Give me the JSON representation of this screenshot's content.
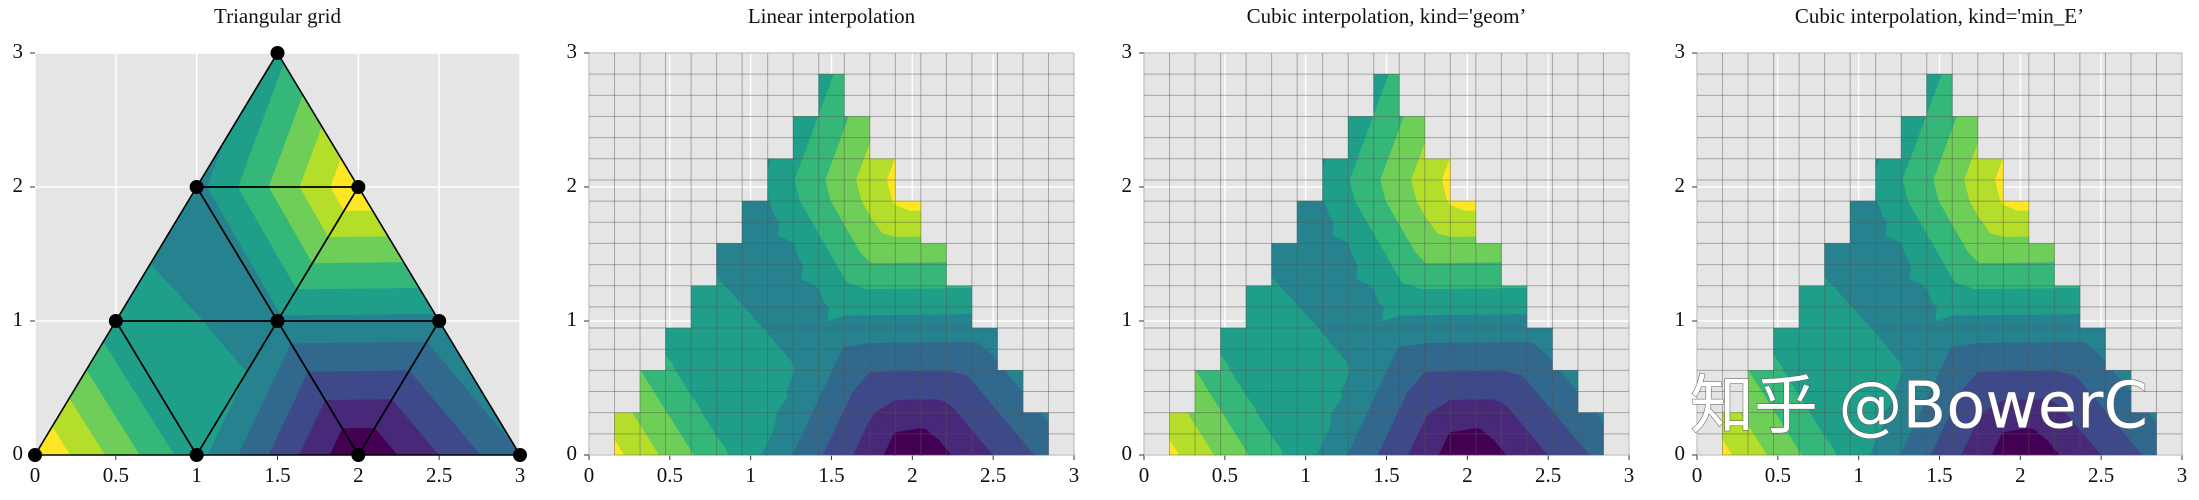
{
  "chart_data": [
    {
      "type": "tricontour",
      "title": "Triangular grid",
      "x": [
        0,
        1,
        2,
        3,
        0.5,
        1.5,
        2.5,
        1,
        2,
        1.5
      ],
      "y": [
        0,
        0,
        0,
        0,
        1,
        1,
        1,
        2,
        2,
        3
      ],
      "z": [
        1,
        0.0707,
        -0.99,
        -0.2108,
        0.0518,
        -0.0444,
        -0.058,
        -0.07,
        0.9801,
        0.1324
      ],
      "triangles": [
        [
          0,
          1,
          4
        ],
        [
          1,
          2,
          5
        ],
        [
          2,
          3,
          6
        ],
        [
          1,
          5,
          4
        ],
        [
          2,
          6,
          5
        ],
        [
          4,
          5,
          7
        ],
        [
          5,
          6,
          8
        ],
        [
          5,
          8,
          7
        ],
        [
          7,
          8,
          9
        ]
      ],
      "levels": [
        -1,
        -0.8,
        -0.6,
        -0.4,
        -0.2,
        0,
        0.2,
        0.4,
        0.6,
        0.8,
        1
      ],
      "colors": [
        "#440154",
        "#482878",
        "#3e4989",
        "#31688e",
        "#26828e",
        "#1f9e89",
        "#35b779",
        "#6ece58",
        "#b5de2b",
        "#fde725"
      ],
      "xlim": [
        0,
        3
      ],
      "ylim": [
        0,
        3
      ],
      "xticks": [
        0,
        0.5,
        1,
        1.5,
        2,
        2.5,
        3
      ],
      "yticks": [
        0,
        1,
        2,
        3
      ],
      "grid": true
    },
    {
      "type": "grid_contour",
      "title": "Linear interpolation",
      "grid_n": 20,
      "x": [
        0,
        1,
        2,
        3,
        0.5,
        1.5,
        2.5,
        1,
        2,
        1.5
      ],
      "y": [
        0,
        0,
        0,
        0,
        1,
        1,
        1,
        2,
        2,
        3
      ],
      "z": [
        1,
        0.0707,
        -0.99,
        -0.2108,
        0.0518,
        -0.0444,
        -0.058,
        -0.07,
        0.9801,
        0.1324
      ],
      "triangles": [
        [
          0,
          1,
          4
        ],
        [
          1,
          2,
          5
        ],
        [
          2,
          3,
          6
        ],
        [
          1,
          5,
          4
        ],
        [
          2,
          6,
          5
        ],
        [
          4,
          5,
          7
        ],
        [
          5,
          6,
          8
        ],
        [
          5,
          8,
          7
        ],
        [
          7,
          8,
          9
        ]
      ],
      "levels": [
        -1,
        -0.8,
        -0.6,
        -0.4,
        -0.2,
        0,
        0.2,
        0.4,
        0.6,
        0.8,
        1
      ],
      "colors": [
        "#440154",
        "#482878",
        "#3e4989",
        "#31688e",
        "#26828e",
        "#1f9e89",
        "#35b779",
        "#6ece58",
        "#b5de2b",
        "#fde725"
      ],
      "xlim": [
        0,
        3
      ],
      "ylim": [
        0,
        3
      ],
      "xticks": [
        0,
        0.5,
        1,
        1.5,
        2,
        2.5,
        3
      ],
      "yticks": [
        0,
        1,
        2,
        3
      ],
      "grid": true
    },
    {
      "type": "grid_contour",
      "title": "Cubic interpolation, kind='geom’",
      "grid_n": 20,
      "x": [
        0,
        1,
        2,
        3,
        0.5,
        1.5,
        2.5,
        1,
        2,
        1.5
      ],
      "y": [
        0,
        0,
        0,
        0,
        1,
        1,
        1,
        2,
        2,
        3
      ],
      "z": [
        1,
        0.0707,
        -0.99,
        -0.2108,
        0.0518,
        -0.0444,
        -0.058,
        -0.07,
        0.9801,
        0.1324
      ],
      "triangles": [
        [
          0,
          1,
          4
        ],
        [
          1,
          2,
          5
        ],
        [
          2,
          3,
          6
        ],
        [
          1,
          5,
          4
        ],
        [
          2,
          6,
          5
        ],
        [
          4,
          5,
          7
        ],
        [
          5,
          6,
          8
        ],
        [
          5,
          8,
          7
        ],
        [
          7,
          8,
          9
        ]
      ],
      "levels": [
        -1,
        -0.8,
        -0.6,
        -0.4,
        -0.2,
        0,
        0.2,
        0.4,
        0.6,
        0.8,
        1
      ],
      "colors": [
        "#440154",
        "#482878",
        "#3e4989",
        "#31688e",
        "#26828e",
        "#1f9e89",
        "#35b779",
        "#6ece58",
        "#b5de2b",
        "#fde725"
      ],
      "xlim": [
        0,
        3
      ],
      "ylim": [
        0,
        3
      ],
      "xticks": [
        0,
        0.5,
        1,
        1.5,
        2,
        2.5,
        3
      ],
      "yticks": [
        0,
        1,
        2,
        3
      ],
      "grid": true
    },
    {
      "type": "grid_contour",
      "title": "Cubic interpolation, kind='min_E’",
      "grid_n": 20,
      "x": [
        0,
        1,
        2,
        3,
        0.5,
        1.5,
        2.5,
        1,
        2,
        1.5
      ],
      "y": [
        0,
        0,
        0,
        0,
        1,
        1,
        1,
        2,
        2,
        3
      ],
      "z": [
        1,
        0.0707,
        -0.99,
        -0.2108,
        0.0518,
        -0.0444,
        -0.058,
        -0.07,
        0.9801,
        0.1324
      ],
      "triangles": [
        [
          0,
          1,
          4
        ],
        [
          1,
          2,
          5
        ],
        [
          2,
          3,
          6
        ],
        [
          1,
          5,
          4
        ],
        [
          2,
          6,
          5
        ],
        [
          4,
          5,
          7
        ],
        [
          5,
          6,
          8
        ],
        [
          5,
          8,
          7
        ],
        [
          7,
          8,
          9
        ]
      ],
      "levels": [
        -1,
        -0.8,
        -0.6,
        -0.4,
        -0.2,
        0,
        0.2,
        0.4,
        0.6,
        0.8,
        1
      ],
      "colors": [
        "#440154",
        "#482878",
        "#3e4989",
        "#31688e",
        "#26828e",
        "#1f9e89",
        "#35b779",
        "#6ece58",
        "#b5de2b",
        "#fde725"
      ],
      "xlim": [
        0,
        3
      ],
      "ylim": [
        0,
        3
      ],
      "xticks": [
        0,
        0.5,
        1,
        1.5,
        2,
        2.5,
        3
      ],
      "yticks": [
        0,
        1,
        2,
        3
      ],
      "grid": true
    }
  ],
  "watermark": "知乎 @BowerC"
}
